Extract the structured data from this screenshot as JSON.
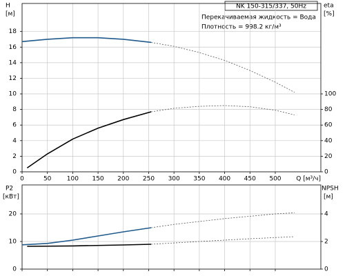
{
  "chart_data": [
    {
      "type": "line",
      "title": "NK 150-315/337, 50Hz",
      "annotations": [
        "Перекачиваемая жидкость = Вода",
        "Плотность = 998.2 кг/м³"
      ],
      "xlabel": "Q [м³/ч]",
      "ylabel": "H",
      "yunit": "[м]",
      "y2label": "eta",
      "y2unit": "[%]",
      "xlim": [
        0,
        590
      ],
      "xticks": [
        0,
        50,
        100,
        150,
        200,
        250,
        300,
        350,
        400,
        450,
        500
      ],
      "xtick_labels": true,
      "ylim": [
        0,
        21.6
      ],
      "yticks": [
        0,
        2,
        4,
        6,
        8,
        10,
        12,
        14,
        16,
        18
      ],
      "y2lim": [
        0,
        216
      ],
      "y2ticks": [
        0,
        20,
        40,
        60,
        80,
        100
      ],
      "grid": true,
      "series": [
        {
          "color": "#1f5a8c",
          "style": "solid",
          "axis": "y",
          "x": [
            0,
            50,
            100,
            150,
            200,
            255
          ],
          "values": [
            16.7,
            17.0,
            17.2,
            17.2,
            17.0,
            16.6
          ]
        },
        {
          "color": "#555555",
          "style": "dashed",
          "axis": "y",
          "x": [
            255,
            300,
            350,
            400,
            450,
            500,
            538
          ],
          "values": [
            16.6,
            16.1,
            15.3,
            14.3,
            13.0,
            11.5,
            10.2
          ]
        },
        {
          "color": "#000000",
          "style": "solid",
          "axis": "y2",
          "x": [
            10,
            50,
            100,
            150,
            200,
            255
          ],
          "values": [
            5,
            23,
            42,
            56,
            67,
            77
          ]
        },
        {
          "color": "#555555",
          "style": "dashed",
          "axis": "y2",
          "x": [
            255,
            300,
            350,
            400,
            450,
            500,
            538
          ],
          "values": [
            77,
            81.5,
            84,
            85,
            83.5,
            79,
            73
          ]
        }
      ]
    },
    {
      "type": "line",
      "ylabel": "P2",
      "yunit": "[кВт]",
      "y2label": "NPSH",
      "y2unit": "[м]",
      "xlim": [
        0,
        590
      ],
      "xticks": [
        0,
        50,
        100,
        150,
        200,
        250,
        300,
        350,
        400,
        450,
        500
      ],
      "xtick_labels": false,
      "ylim": [
        0,
        30.5
      ],
      "yticks": [
        0,
        10,
        20
      ],
      "y2lim": [
        0,
        6.1
      ],
      "y2ticks": [
        0,
        2,
        4
      ],
      "grid": true,
      "series": [
        {
          "color": "#1f5a8c",
          "style": "solid",
          "axis": "y",
          "x": [
            0,
            50,
            100,
            150,
            200,
            255
          ],
          "values": [
            8.8,
            9.3,
            10.5,
            12.0,
            13.5,
            15.0
          ]
        },
        {
          "color": "#555555",
          "style": "dashed",
          "axis": "y",
          "x": [
            255,
            300,
            400,
            500,
            538
          ],
          "values": [
            15.0,
            16.2,
            18.3,
            20.0,
            20.4
          ]
        },
        {
          "color": "#000000",
          "style": "solid",
          "axis": "y2",
          "x": [
            10,
            100,
            200,
            255
          ],
          "values": [
            1.65,
            1.68,
            1.75,
            1.8
          ]
        },
        {
          "color": "#555555",
          "style": "dashed",
          "axis": "y2",
          "x": [
            255,
            350,
            450,
            538
          ],
          "values": [
            1.8,
            2.0,
            2.2,
            2.35
          ]
        }
      ]
    }
  ]
}
